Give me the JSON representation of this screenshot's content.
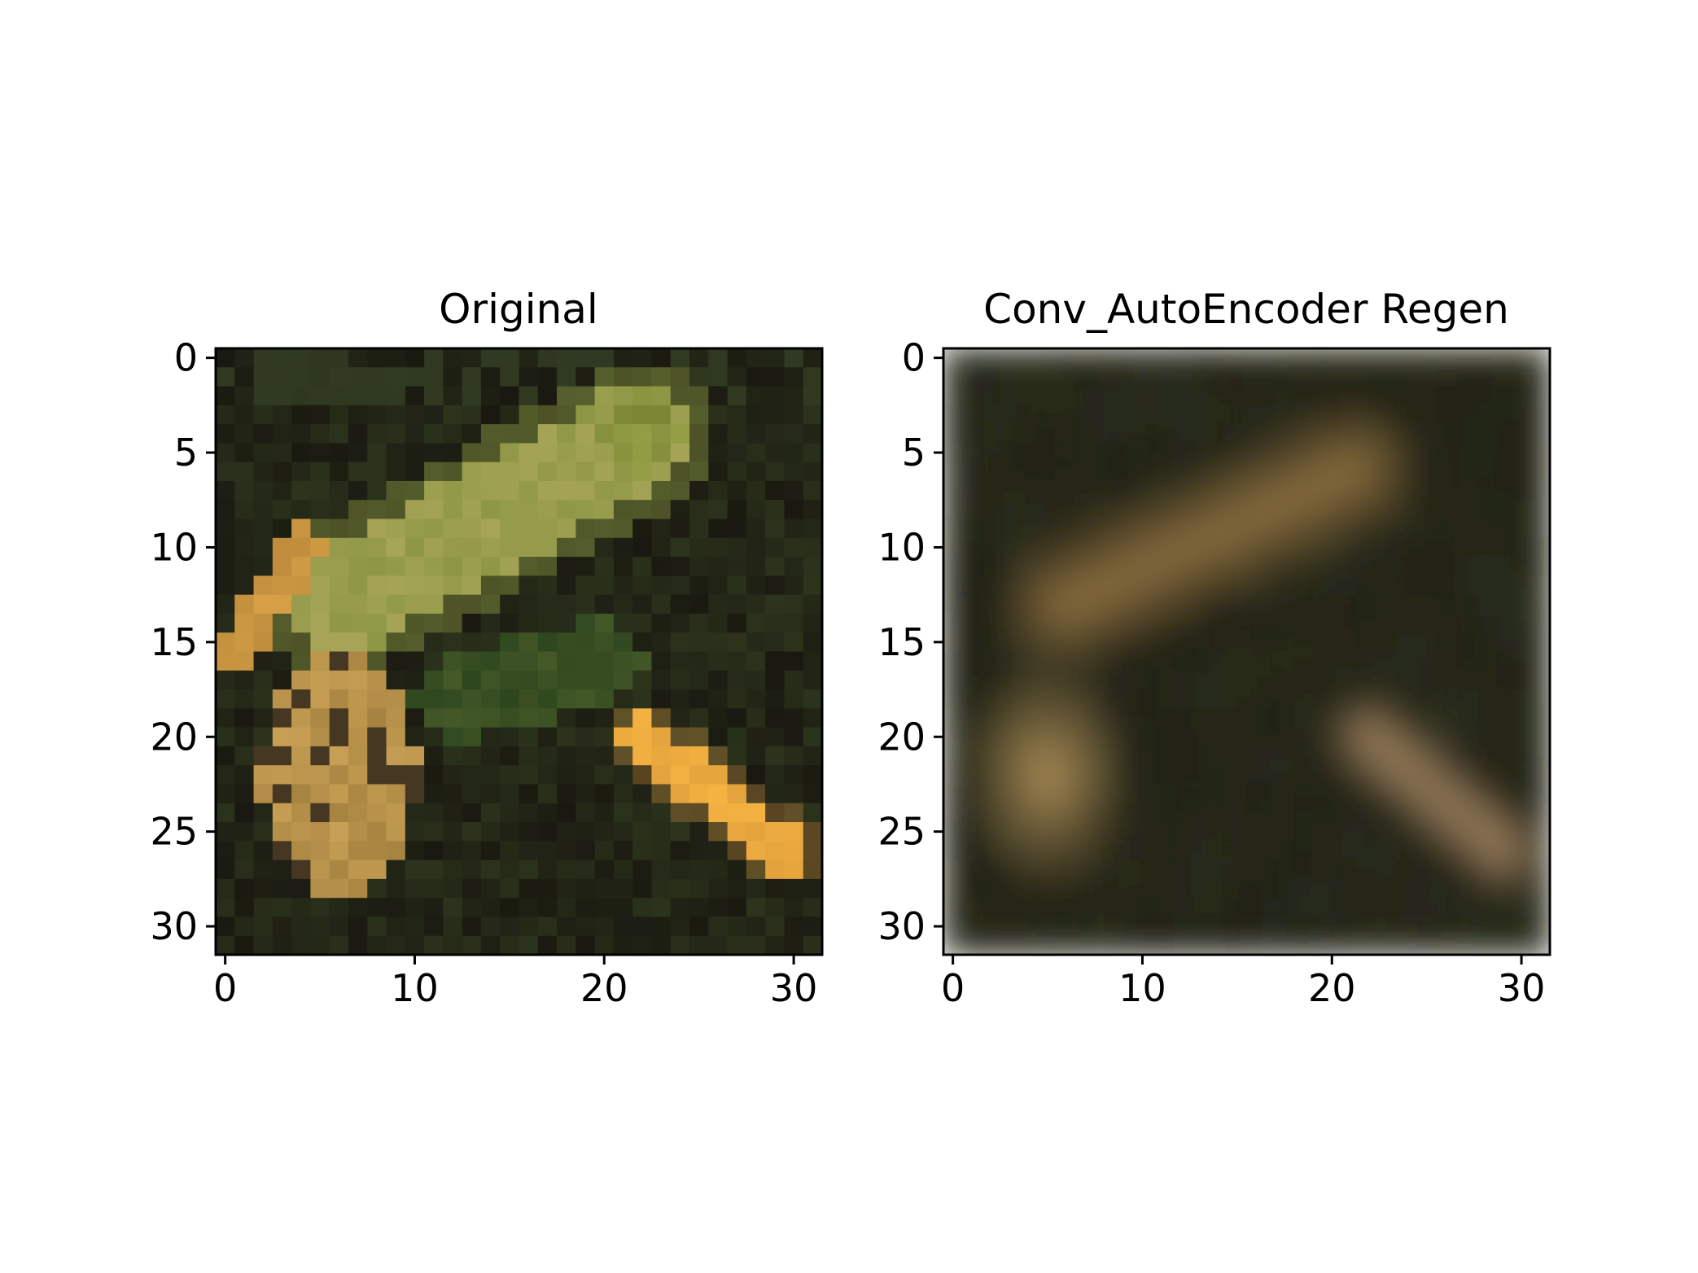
{
  "chart_data": [
    {
      "type": "heatmap",
      "title": "Original",
      "xlabel": "",
      "ylabel": "",
      "xlim": [
        -0.5,
        31.5
      ],
      "ylim": [
        31.5,
        -0.5
      ],
      "xticks": [
        0,
        10,
        20,
        30
      ],
      "yticks": [
        0,
        5,
        10,
        15,
        20,
        25,
        30
      ],
      "grid": false,
      "image_size": [
        32,
        32
      ],
      "rendering": "nearest-pixel (blocky)",
      "content": "frog on dark green foliage: pale-green frog body diagonally from lower-left to upper-right, yellow-orange legs at left and lower-right"
    },
    {
      "type": "heatmap",
      "title": "Conv_AutoEncoder Regen",
      "xlabel": "",
      "ylabel": "",
      "xlim": [
        -0.5,
        31.5
      ],
      "ylim": [
        31.5,
        -0.5
      ],
      "xticks": [
        0,
        10,
        20,
        30
      ],
      "yticks": [
        0,
        5,
        10,
        15,
        20,
        25,
        30
      ],
      "grid": false,
      "image_size": [
        32,
        32
      ],
      "rendering": "smoothed / blurred reconstruction",
      "content": "blurred reconstruction of the frog image with muted brown-tan tones on dark background"
    }
  ],
  "colors": {
    "background_dark": "#1c1b12",
    "foliage_dark_green": "#26301a",
    "frog_green": "#8a9640",
    "frog_yellow": "#c7a24e",
    "leg_orange": "#f0b040",
    "regen_tan": "#9a7d4c",
    "regen_dark": "#1e1a10"
  }
}
